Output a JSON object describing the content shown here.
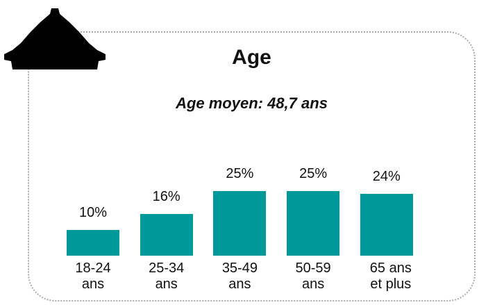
{
  "chart_data": {
    "type": "bar",
    "title": "Age",
    "subtitle": "Age moyen: 48,7 ans",
    "categories": [
      "18-24 ans",
      "25-34 ans",
      "35-49 ans",
      "50-59 ans",
      "65 ans et plus"
    ],
    "values": [
      10,
      16,
      25,
      25,
      24
    ],
    "value_labels": [
      "10%",
      "16%",
      "25%",
      "25%",
      "24%"
    ],
    "color": "#009999"
  }
}
